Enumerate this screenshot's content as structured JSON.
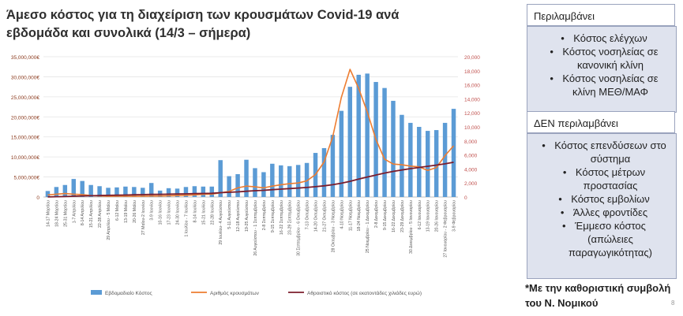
{
  "title": {
    "line1": "Άμεσο κόστος για τη διαχείριση των κρουσμάτων Covid-19 ανά",
    "line2": "εβδομάδα και συνολικά (14/3 – σήμερα)"
  },
  "included": {
    "heading": "Περιλαμβάνει",
    "items": [
      "Κόστος ελέγχων",
      "Κόστος νοσηλείας σε κανονική κλίνη",
      "Κόστος νοσηλείας σε κλίνη ΜΕΘ/ΜΑΦ"
    ]
  },
  "excluded": {
    "heading": "ΔΕΝ περιλαμβάνει",
    "items": [
      "Κόστος επενδύσεων στο σύστημα",
      "Κόστος μέτρων προστασίας",
      "Κόστος εμβολίων",
      "Άλλες φροντίδες",
      "Έμμεσο κόστος (απώλειες παραγωγικότητας)"
    ]
  },
  "footnote": "*Με την καθοριστική συμβολή του Ν. Νομικού",
  "page_number": "8",
  "colors": {
    "bars": "#5b9bd5",
    "cases_line": "#ed7d31",
    "cumulative_line": "#7b1d2c",
    "panel_bg": "#dfe3ee"
  },
  "chart_data": {
    "type": "bar",
    "categories": [
      "14-17 Μαρτίου",
      "18-24 Μαρτίου",
      "25-31 Μαρτίου",
      "1-7 Απριλίου",
      "8-14 Απριλίου",
      "15-21 Απριλίου",
      "22-28 Απριλίου",
      "29 Απριλίου - 5 Μαΐου",
      "6-12 Μαΐου",
      "13-19 Μαΐου",
      "20-26 Μαΐου",
      "27 Μαΐου-2 Ιουνίου",
      "3-9 Ιουνίου",
      "10-16 Ιουνίου",
      "17-23 Ιουνίου",
      "24-30 Ιουνίου",
      "1 Ιουλίου - 7 Ιουλίου",
      "8-14 Ιουλίου",
      "15-21 Ιουλίου",
      "22-28 Ιουλίου",
      "29 Ιουλίου- 4 Αυγούστου",
      "5-11 Αυγούστου",
      "12-18 Αυγούστου",
      "19-25 Αυγούστου",
      "26 Αυγούστου - 1 Σεπτεμβρίου",
      "2-8 Σεπτεμβρίου",
      "9-15 Σεπτεμβρίου",
      "16-22 Σεπτεμβρίου",
      "23-29 Σεπτεμβρίου",
      "30 Σεπτεμβρίου - 6 Οκτωβρίου",
      "7-13 Οκτωβρίου",
      "14-20 Οκτωβρίου",
      "21-27 Οκτωβρίου",
      "28 Οκτωβρίου - 3 Νοεμβρίου",
      "4-10 Νοεμβρίου",
      "11-17 Νοεμβρίου",
      "18-24 Νοεμβρίου",
      "25 Νοεμβρίου - 1 Δεκεμβρίου",
      "2-8 Δεκεμβρίου",
      "9-15 Δεκεμβρίου",
      "16-22 Δεκεμβρίου",
      "23-29 Δεκεμβρίου",
      "30 Δεκεμβρίου - 5 Ιανουαρίου",
      "6-12 Ιανουαρίου",
      "13-19 Ιανουαρίου",
      "20-26 Ιανουαρίου",
      "27 Ιανουαρίου - 2 Φεβρουαρίου",
      "3-9 Φεβρουαρίου"
    ],
    "series": [
      {
        "name": "Εβδομαδιαίο Κόστος",
        "type": "bar",
        "axis": "left",
        "values": [
          1500000,
          2500000,
          3000000,
          4500000,
          4000000,
          3000000,
          2700000,
          2300000,
          2400000,
          2600000,
          2500000,
          2300000,
          3500000,
          1600000,
          2200000,
          2100000,
          2500000,
          2700000,
          2600000,
          2600000,
          9200000,
          5200000,
          5700000,
          9300000,
          7200000,
          6200000,
          8300000,
          7900000,
          7700000,
          8000000,
          8500000,
          11000000,
          12200000,
          15500000,
          21500000,
          27500000,
          30500000,
          30800000,
          28700000,
          27200000,
          24000000,
          20500000,
          18500000,
          17500000,
          16500000,
          16700000,
          18500000,
          22000000
        ]
      },
      {
        "name": "Αριθμός κρουσμάτων",
        "type": "line",
        "axis": "right",
        "values": [
          300,
          400,
          500,
          400,
          350,
          200,
          150,
          100,
          120,
          130,
          100,
          120,
          150,
          150,
          180,
          200,
          250,
          300,
          380,
          420,
          600,
          800,
          1300,
          1550,
          1450,
          1300,
          1550,
          1750,
          1900,
          2000,
          2300,
          3200,
          5000,
          8600,
          14200,
          18200,
          15500,
          12100,
          8200,
          5400,
          4700,
          4600,
          4400,
          4300,
          3800,
          4200,
          5900,
          7300
        ]
      },
      {
        "name": "Αθροιστικό κόστος (σε εκατοντάδες χιλιάδες ευρώ)",
        "type": "line",
        "axis": "right",
        "values": [
          15,
          40,
          70,
          115,
          155,
          185,
          212,
          235,
          259,
          285,
          310,
          333,
          368,
          384,
          406,
          427,
          452,
          479,
          505,
          531,
          623,
          675,
          732,
          825,
          897,
          959,
          1042,
          1121,
          1198,
          1278,
          1363,
          1473,
          1595,
          1750,
          1965,
          2240,
          2545,
          2853,
          3140,
          3412,
          3652,
          3857,
          4042,
          4217,
          4382,
          4549,
          4734,
          4954
        ]
      }
    ],
    "y_left": {
      "min": 0,
      "max": 35000000,
      "ticks": [
        "0",
        "5,000,000€",
        "10,000,000€",
        "15,000,000€",
        "20,000,000€",
        "25,000,000€",
        "30,000,000€",
        "35,000,000€"
      ]
    },
    "y_right": {
      "min": 0,
      "max": 20000,
      "ticks": [
        "0",
        "2,000",
        "4,000",
        "6,000",
        "8,000",
        "10,000",
        "12,000",
        "14,000",
        "16,000",
        "18,000",
        "20,000"
      ]
    },
    "grid": true,
    "legend_position": "bottom"
  }
}
